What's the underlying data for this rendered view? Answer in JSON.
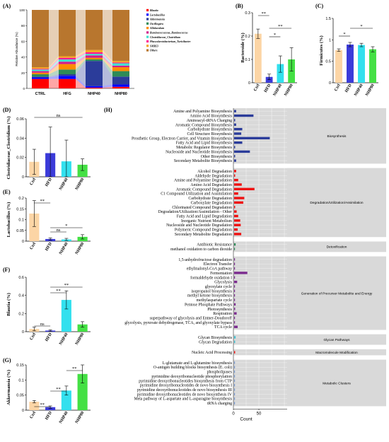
{
  "chart_data": [
    {
      "panel": "(A)",
      "type": "bar",
      "stacked": true,
      "ylabel": "Relative Abundance (%)",
      "categories": [
        "CTRL",
        "HFG",
        "NHP40",
        "NHP80"
      ],
      "ylim": [
        0,
        100
      ],
      "yticks": [
        0,
        20,
        40,
        60,
        80,
        100
      ],
      "series": [
        {
          "name": "Blautia",
          "color": "#ff0000",
          "values": [
            12,
            12,
            1,
            2
          ]
        },
        {
          "name": "Lactobacillus",
          "color": "#0000ff",
          "values": [
            2,
            4,
            2,
            3
          ]
        },
        {
          "name": "Akkermansia",
          "color": "#2b3c9a",
          "values": [
            1,
            2,
            32,
            10
          ]
        },
        {
          "name": "Oscillospira",
          "color": "#2e8b57",
          "values": [
            3,
            6,
            2,
            7
          ]
        },
        {
          "name": "Allobaculum",
          "color": "#ff8c00",
          "values": [
            2,
            7,
            2,
            5
          ]
        },
        {
          "name": "Ruminococcaceae_Ruminococcus",
          "color": "#d01c8b",
          "values": [
            2,
            3,
            3,
            2
          ]
        },
        {
          "name": "Clostridiaceae_Clostridium",
          "color": "#40e0d0",
          "values": [
            2,
            3,
            2,
            3
          ]
        },
        {
          "name": "Phascolarctobacterium_Turicibacter",
          "color": "#ff1493",
          "values": [
            1,
            2,
            2,
            1
          ]
        },
        {
          "name": "SMB53",
          "color": "#f5a623",
          "values": [
            2,
            2,
            3,
            2
          ]
        },
        {
          "name": "Others",
          "color": "#b8762e",
          "values": [
            73,
            59,
            51,
            65
          ]
        }
      ]
    },
    {
      "panel": "(B)",
      "type": "bar",
      "ylabel": "Bacteroide (%)",
      "categories": [
        "Ctrl",
        "HFD",
        "NHP40",
        "NHP80"
      ],
      "values": [
        0.21,
        0.025,
        0.08,
        0.1
      ],
      "errors": [
        0.02,
        0.012,
        0.035,
        0.05
      ],
      "ylim": [
        0,
        0.3
      ],
      "yticks": [
        0.0,
        0.1,
        0.2,
        0.3
      ],
      "colors": [
        "#fcd5a5",
        "#3b3bd9",
        "#33e0ee",
        "#44e044"
      ],
      "annotations": [
        "**",
        "*",
        "**"
      ]
    },
    {
      "panel": "(C)",
      "type": "bar",
      "ylabel": "Firmicutes (%)",
      "categories": [
        "Ctrl",
        "HFD",
        "NHP40",
        "NHP80"
      ],
      "values": [
        0.76,
        0.89,
        0.88,
        0.78
      ],
      "errors": [
        0.03,
        0.05,
        0.04,
        0.06
      ],
      "ylim": [
        0,
        1.5
      ],
      "yticks": [
        0.0,
        0.5,
        1.0,
        1.5
      ],
      "colors": [
        "#fcd5a5",
        "#3b3bd9",
        "#33e0ee",
        "#44e044"
      ],
      "annotations": [
        "*",
        "*"
      ]
    },
    {
      "panel": "(D)",
      "type": "bar",
      "ylabel": "Clostridiaceae_Clostridium (%)",
      "categories": [
        "Ctrl",
        "HFD",
        "NHP40",
        "NHP80"
      ],
      "values": [
        0.0155,
        0.0245,
        0.016,
        0.0125
      ],
      "errors": [
        0.013,
        0.027,
        0.022,
        0.006
      ],
      "ylim": [
        0,
        0.06
      ],
      "yticks": [
        0.0,
        0.02,
        0.04,
        0.06
      ],
      "colors": [
        "#fcd5a5",
        "#3b3bd9",
        "#33e0ee",
        "#44e044"
      ],
      "annotations": [
        "ns"
      ]
    },
    {
      "panel": "(E)",
      "type": "bar",
      "ylabel": "Lactobacillus (%)",
      "categories": [
        "Ctrl",
        "HFD",
        "NHP40",
        "NHP80"
      ],
      "values": [
        0.128,
        0.01,
        0.008,
        0.02
      ],
      "errors": [
        0.06,
        0.005,
        0.005,
        0.01
      ],
      "ylim": [
        0,
        0.2
      ],
      "yticks": [
        0.0,
        0.05,
        0.1,
        0.15,
        0.2
      ],
      "colors": [
        "#fcd5a5",
        "#3b3bd9",
        "#33e0ee",
        "#44e044"
      ],
      "annotations": [
        "**",
        "ns",
        "*"
      ]
    },
    {
      "panel": "(F)",
      "type": "bar",
      "ylabel": "Blautia (%)",
      "categories": [
        "Ctrl",
        "HFD",
        "NHP40",
        "NHP80"
      ],
      "values": [
        0.03,
        0.012,
        0.35,
        0.08
      ],
      "errors": [
        0.02,
        0.008,
        0.1,
        0.03
      ],
      "ylim": [
        0,
        0.6
      ],
      "yticks": [
        0.0,
        0.2,
        0.4,
        0.6
      ],
      "colors": [
        "#fcd5a5",
        "#3b3bd9",
        "#33e0ee",
        "#44e044"
      ],
      "annotations": [
        "ns",
        "**",
        "**"
      ]
    },
    {
      "panel": "(G)",
      "type": "bar",
      "ylabel": "Akkermansia (%)",
      "categories": [
        "Ctrl",
        "HFD",
        "NHP40",
        "NHP80"
      ],
      "values": [
        0.028,
        0.01,
        0.065,
        0.12
      ],
      "errors": [
        0.004,
        0.004,
        0.015,
        0.03
      ],
      "ylim": [
        0,
        0.15
      ],
      "yticks": [
        0.0,
        0.05,
        0.1,
        0.15
      ],
      "colors": [
        "#fcd5a5",
        "#3b3bd9",
        "#33e0ee",
        "#44e044"
      ],
      "annotations": [
        "**",
        "**",
        "**",
        "**"
      ]
    },
    {
      "panel": "(H)",
      "type": "bar",
      "orientation": "horizontal",
      "xlabel": "Count",
      "xticks": [
        0,
        50
      ],
      "xlim": [
        0,
        135
      ],
      "groups": [
        {
          "name": "Biosynthesis",
          "color": "#2b3c9a",
          "items": [
            {
              "label": "Amine and Polyamine Biosynthesis",
              "value": 4
            },
            {
              "label": "Amino Acid Biosynthesis",
              "value": 38
            },
            {
              "label": "Aminoacyl-tRNA Charging",
              "value": 2
            },
            {
              "label": "Aromatic Compound Biosynthesis",
              "value": 4
            },
            {
              "label": "Carbohydrate Biosynthesis",
              "value": 16
            },
            {
              "label": "Cell Structure Biosynthesis",
              "value": 14
            },
            {
              "label": "Prosthetic Group, Electron Carrier, and Vitamin Biosynthesis",
              "value": 70
            },
            {
              "label": "Fatty Acid and Lipid Biosynthesis",
              "value": 16
            },
            {
              "label": "Metabolic Regulator Biosynthesis",
              "value": 2
            },
            {
              "label": "Nucleoside and Nucleotide Biosynthesis",
              "value": 31
            },
            {
              "label": "Other Biosynthesis",
              "value": 2
            },
            {
              "label": "Secondary Metabolite Biosynthesis",
              "value": 4
            }
          ]
        },
        {
          "name": "Degradation/Utilization/Assimilation",
          "color": "#ee1111",
          "items": [
            {
              "label": "Alcohol Degradation",
              "value": 4
            },
            {
              "label": "Aldehyde Degradation",
              "value": 2
            },
            {
              "label": "Amine and Polyamine Degradation",
              "value": 8
            },
            {
              "label": "Amino Acid Degradation",
              "value": 15
            },
            {
              "label": "Aromatic Compound Degradation",
              "value": 40
            },
            {
              "label": "C1 Compound Utilization and Assimilation",
              "value": 8
            },
            {
              "label": "Carbohydrate Degradation",
              "value": 20
            },
            {
              "label": "Carboxylate Degradation",
              "value": 18
            },
            {
              "label": "Chlorinated Compound Degradation",
              "value": 2
            },
            {
              "label": "Degradation/Utilization/Assimilation - Other",
              "value": 5
            },
            {
              "label": "Fatty Acid and Lipid Degradation",
              "value": 8
            },
            {
              "label": "Inorganic Nutrient Metabolism",
              "value": 12
            },
            {
              "label": "Nucleoside and Nucleotide Degradation",
              "value": 13
            },
            {
              "label": "Polymeric Compound Degradation",
              "value": 7
            },
            {
              "label": "Secondary Metabolite Degradation",
              "value": 14
            }
          ]
        },
        {
          "name": "Detoxification",
          "color": "#2e8b57",
          "items": [
            {
              "label": "Antibiotic Resistance",
              "value": 3
            },
            {
              "label": "methanol oxidation to carbon dioxide",
              "value": 1
            }
          ]
        },
        {
          "name": "Generation of Precursor Metabolite and Energy",
          "color": "#7b2c8f",
          "items": [
            {
              "label": "1,5-anhydrofructose degradation",
              "value": 1
            },
            {
              "label": "Electron Transfer",
              "value": 1
            },
            {
              "label": "ethylmalonyl-CoA pathway",
              "value": 1
            },
            {
              "label": "Fermentation",
              "value": 26
            },
            {
              "label": "formaldehyde oxidation I",
              "value": 1
            },
            {
              "label": "Glycolysis",
              "value": 6
            },
            {
              "label": "glyoxylate cycle",
              "value": 1
            },
            {
              "label": "isopropanol biosynthesis",
              "value": 1
            },
            {
              "label": "methyl ketone biosynthesis",
              "value": 1
            },
            {
              "label": "methylaspartate cycle",
              "value": 1
            },
            {
              "label": "Pentose Phosphate Pathways",
              "value": 3
            },
            {
              "label": "Photosynthesis",
              "value": 2
            },
            {
              "label": "Respiration",
              "value": 5
            },
            {
              "label": "superpathway of glycolysis and Entner-Doudoroff",
              "value": 1
            },
            {
              "label": "glycolysis, pyruvate dehydrogenase, TCA, and glyoxylate bypass",
              "value": 1
            },
            {
              "label": "TCA cycle",
              "value": 7
            }
          ]
        },
        {
          "name": "Glycan Pathways",
          "color": "#40c0d0",
          "items": [
            {
              "label": "Glycan Biosynthesis",
              "value": 3
            },
            {
              "label": "Glycan Degradation",
              "value": 2
            }
          ]
        },
        {
          "name": "Macromolecule Modification",
          "color": "#ee1111",
          "items": [
            {
              "label": "Nucleic Acid Processing",
              "value": 2
            }
          ]
        },
        {
          "name": "Metabolic Clusters",
          "color": "#7b9bd0",
          "items": [
            {
              "label": "L-glutamate and L-glutamine biosynthesis",
              "value": 1
            },
            {
              "label": "O-antigen building blocks biosynthesis (E. coli)",
              "value": 1
            },
            {
              "label": "phospholipases",
              "value": 1
            },
            {
              "label": "pyrimidine deoxyribonucleotide phosphorylation",
              "value": 1
            },
            {
              "label": "pyrimidine deoxyribonucleotides biosynthesis from CTP",
              "value": 1
            },
            {
              "label": "pyrimidine deoxyribonucleotides de novo biosynthesis I",
              "value": 1
            },
            {
              "label": "pyrimidine deoxyribonucleotides de novo biosynthesis III",
              "value": 1
            },
            {
              "label": "pyrimidine deoxyribonucleotides de novo biosynthesis IV",
              "value": 1
            },
            {
              "label": "Meta pathway of L-aspartate and L-asparagine biosynthesis",
              "value": 1
            },
            {
              "label": "tRNA charging",
              "value": 1
            }
          ]
        }
      ]
    }
  ]
}
